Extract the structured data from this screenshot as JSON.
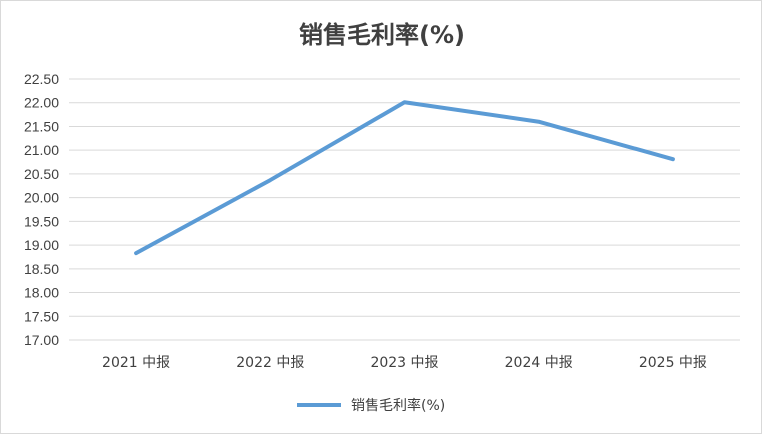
{
  "chart_data": {
    "type": "line",
    "title": "销售毛利率(%)",
    "categories": [
      "2021 中报",
      "2022 中报",
      "2023 中报",
      "2024 中报",
      "2025 中报"
    ],
    "series": [
      {
        "name": "销售毛利率(%)",
        "values": [
          18.83,
          20.37,
          22.01,
          21.6,
          20.81
        ],
        "color": "#5b9bd5"
      }
    ],
    "ylim": [
      17.0,
      22.5
    ],
    "ytick_step": 0.5,
    "grid": true,
    "legend": "bottom"
  }
}
